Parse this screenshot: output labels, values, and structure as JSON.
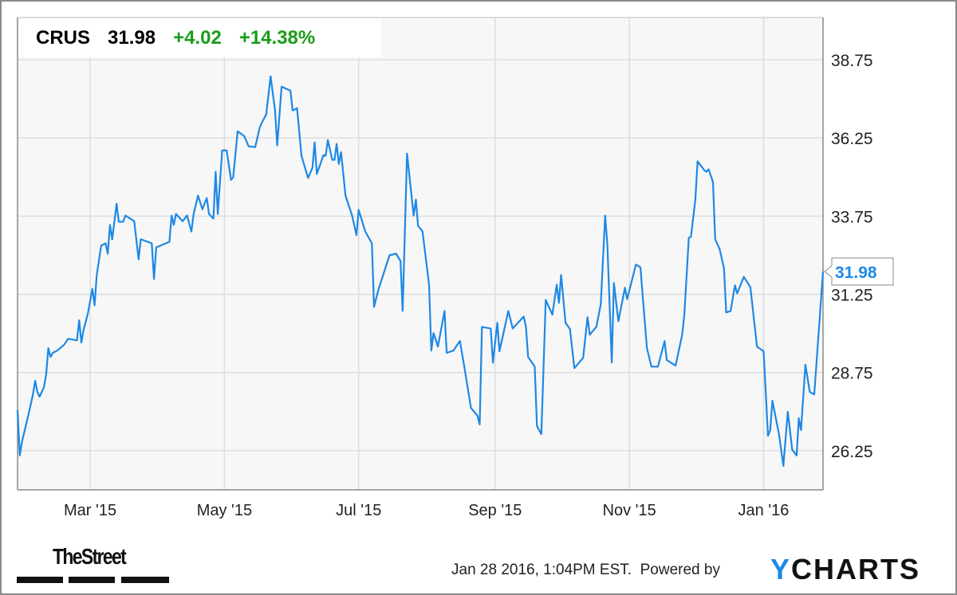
{
  "header": {
    "ticker": "CRUS",
    "price": "31.98",
    "change": "+4.02",
    "change_pct": "+14.38%"
  },
  "footer": {
    "timestamp": "Jan 28 2016, 1:04PM EST.",
    "powered_by": "Powered by",
    "brand_left": "TheStreet",
    "brand_right_first": "Y",
    "brand_right_rest": "CHARTS"
  },
  "colors": {
    "line": "#1e88e5",
    "positive": "#1a9c1a",
    "plot_bg": "#f7f7f7",
    "grid": "#dddddd"
  },
  "chart_data": {
    "type": "line",
    "title": "",
    "xlabel": "",
    "ylabel": "",
    "xlim": [
      "2015-01-27",
      "2016-01-28"
    ],
    "ylim": [
      25.0,
      40.1
    ],
    "y_axis_position": "right",
    "grid": true,
    "x_ticks": [
      {
        "date": "2015-03-01",
        "label": "Mar '15"
      },
      {
        "date": "2015-05-01",
        "label": "May '15"
      },
      {
        "date": "2015-07-01",
        "label": "Jul '15"
      },
      {
        "date": "2015-09-01",
        "label": "Sep '15"
      },
      {
        "date": "2015-11-01",
        "label": "Nov '15"
      },
      {
        "date": "2016-01-01",
        "label": "Jan '16"
      }
    ],
    "y_ticks": [
      "26.25",
      "28.75",
      "31.25",
      "33.75",
      "36.25",
      "38.75"
    ],
    "last_value_label": "31.98",
    "series": [
      {
        "points": [
          [
            "2015-01-27",
            27.55
          ],
          [
            "2015-01-28",
            26.1
          ],
          [
            "2015-01-29",
            26.53
          ],
          [
            "2015-02-01",
            27.42
          ],
          [
            "2015-02-03",
            28.05
          ],
          [
            "2015-02-04",
            28.49
          ],
          [
            "2015-02-05",
            28.13
          ],
          [
            "2015-02-06",
            27.98
          ],
          [
            "2015-02-08",
            28.28
          ],
          [
            "2015-02-09",
            28.69
          ],
          [
            "2015-02-10",
            29.53
          ],
          [
            "2015-02-11",
            29.25
          ],
          [
            "2015-02-12",
            29.38
          ],
          [
            "2015-02-14",
            29.45
          ],
          [
            "2015-02-17",
            29.63
          ],
          [
            "2015-02-19",
            29.83
          ],
          [
            "2015-02-23",
            29.78
          ],
          [
            "2015-02-24",
            30.42
          ],
          [
            "2015-02-25",
            29.71
          ],
          [
            "2015-02-26",
            30.11
          ],
          [
            "2015-02-28",
            30.65
          ],
          [
            "2015-03-02",
            31.43
          ],
          [
            "2015-03-03",
            30.9
          ],
          [
            "2015-03-04",
            31.87
          ],
          [
            "2015-03-06",
            32.81
          ],
          [
            "2015-03-08",
            32.88
          ],
          [
            "2015-03-09",
            32.55
          ],
          [
            "2015-03-10",
            33.47
          ],
          [
            "2015-03-11",
            33.01
          ],
          [
            "2015-03-13",
            34.15
          ],
          [
            "2015-03-14",
            33.57
          ],
          [
            "2015-03-16",
            33.57
          ],
          [
            "2015-03-17",
            33.77
          ],
          [
            "2015-03-21",
            33.59
          ],
          [
            "2015-03-23",
            32.37
          ],
          [
            "2015-03-24",
            33.01
          ],
          [
            "2015-03-29",
            32.88
          ],
          [
            "2015-03-30",
            31.74
          ],
          [
            "2015-03-31",
            32.75
          ],
          [
            "2015-04-06",
            32.93
          ],
          [
            "2015-04-07",
            33.77
          ],
          [
            "2015-04-08",
            33.47
          ],
          [
            "2015-04-09",
            33.82
          ],
          [
            "2015-04-12",
            33.59
          ],
          [
            "2015-04-14",
            33.77
          ],
          [
            "2015-04-16",
            33.26
          ],
          [
            "2015-04-17",
            33.82
          ],
          [
            "2015-04-19",
            34.41
          ],
          [
            "2015-04-21",
            33.97
          ],
          [
            "2015-04-23",
            34.33
          ],
          [
            "2015-04-24",
            33.82
          ],
          [
            "2015-04-26",
            33.67
          ],
          [
            "2015-04-27",
            35.17
          ],
          [
            "2015-04-28",
            33.82
          ],
          [
            "2015-04-30",
            35.85
          ],
          [
            "2015-05-02",
            35.85
          ],
          [
            "2015-05-04",
            34.91
          ],
          [
            "2015-05-05",
            34.99
          ],
          [
            "2015-05-07",
            36.46
          ],
          [
            "2015-05-10",
            36.31
          ],
          [
            "2015-05-12",
            35.98
          ],
          [
            "2015-05-15",
            35.96
          ],
          [
            "2015-05-17",
            36.57
          ],
          [
            "2015-05-18",
            36.74
          ],
          [
            "2015-05-20",
            37.0
          ],
          [
            "2015-05-22",
            38.22
          ],
          [
            "2015-05-24",
            37.13
          ],
          [
            "2015-05-25",
            36.01
          ],
          [
            "2015-05-27",
            37.89
          ],
          [
            "2015-05-31",
            37.76
          ],
          [
            "2015-06-01",
            37.13
          ],
          [
            "2015-06-03",
            37.2
          ],
          [
            "2015-06-05",
            35.68
          ],
          [
            "2015-06-08",
            34.97
          ],
          [
            "2015-06-10",
            35.3
          ],
          [
            "2015-06-11",
            36.11
          ],
          [
            "2015-06-12",
            35.1
          ],
          [
            "2015-06-15",
            35.7
          ],
          [
            "2015-06-16",
            35.68
          ],
          [
            "2015-06-17",
            36.18
          ],
          [
            "2015-06-19",
            35.55
          ],
          [
            "2015-06-20",
            35.55
          ],
          [
            "2015-06-21",
            36.06
          ],
          [
            "2015-06-22",
            35.42
          ],
          [
            "2015-06-23",
            35.8
          ],
          [
            "2015-06-25",
            34.41
          ],
          [
            "2015-06-28",
            33.77
          ],
          [
            "2015-06-30",
            33.14
          ],
          [
            "2015-07-01",
            33.95
          ],
          [
            "2015-07-04",
            33.26
          ],
          [
            "2015-07-07",
            32.88
          ],
          [
            "2015-07-08",
            30.85
          ],
          [
            "2015-07-10",
            31.41
          ],
          [
            "2015-07-15",
            32.5
          ],
          [
            "2015-07-18",
            32.55
          ],
          [
            "2015-07-20",
            32.32
          ],
          [
            "2015-07-21",
            30.72
          ],
          [
            "2015-07-23",
            35.75
          ],
          [
            "2015-07-26",
            33.77
          ],
          [
            "2015-07-27",
            34.28
          ],
          [
            "2015-07-28",
            33.44
          ],
          [
            "2015-07-30",
            33.26
          ],
          [
            "2015-08-02",
            31.56
          ],
          [
            "2015-08-03",
            29.45
          ],
          [
            "2015-08-04",
            30.01
          ],
          [
            "2015-08-06",
            29.58
          ],
          [
            "2015-08-09",
            30.72
          ],
          [
            "2015-08-10",
            29.38
          ],
          [
            "2015-08-13",
            29.45
          ],
          [
            "2015-08-16",
            29.76
          ],
          [
            "2015-08-18",
            28.94
          ],
          [
            "2015-08-21",
            27.62
          ],
          [
            "2015-08-24",
            27.37
          ],
          [
            "2015-08-25",
            27.09
          ],
          [
            "2015-08-26",
            30.21
          ],
          [
            "2015-08-30",
            30.16
          ],
          [
            "2015-08-31",
            29.07
          ],
          [
            "2015-09-02",
            30.34
          ],
          [
            "2015-09-03",
            29.43
          ],
          [
            "2015-09-07",
            30.72
          ],
          [
            "2015-09-09",
            30.16
          ],
          [
            "2015-09-14",
            30.54
          ],
          [
            "2015-09-15",
            30.21
          ],
          [
            "2015-09-16",
            29.25
          ],
          [
            "2015-09-19",
            28.94
          ],
          [
            "2015-09-20",
            27.04
          ],
          [
            "2015-09-22",
            26.78
          ],
          [
            "2015-09-24",
            31.07
          ],
          [
            "2015-09-27",
            30.6
          ],
          [
            "2015-09-29",
            31.56
          ],
          [
            "2015-09-30",
            30.98
          ],
          [
            "2015-10-01",
            31.87
          ],
          [
            "2015-10-03",
            30.34
          ],
          [
            "2015-10-05",
            30.14
          ],
          [
            "2015-10-07",
            28.89
          ],
          [
            "2015-10-11",
            29.22
          ],
          [
            "2015-10-13",
            30.52
          ],
          [
            "2015-10-14",
            29.96
          ],
          [
            "2015-10-17",
            30.21
          ],
          [
            "2015-10-19",
            30.93
          ],
          [
            "2015-10-21",
            33.77
          ],
          [
            "2015-10-22",
            32.83
          ],
          [
            "2015-10-24",
            29.07
          ],
          [
            "2015-10-25",
            31.61
          ],
          [
            "2015-10-27",
            30.39
          ],
          [
            "2015-10-30",
            31.46
          ],
          [
            "2015-10-31",
            31.1
          ],
          [
            "2015-11-04",
            32.2
          ],
          [
            "2015-11-06",
            32.12
          ],
          [
            "2015-11-09",
            29.53
          ],
          [
            "2015-11-11",
            28.94
          ],
          [
            "2015-11-14",
            28.94
          ],
          [
            "2015-11-17",
            29.76
          ],
          [
            "2015-11-18",
            29.15
          ],
          [
            "2015-11-22",
            28.97
          ],
          [
            "2015-11-25",
            29.96
          ],
          [
            "2015-11-26",
            30.6
          ],
          [
            "2015-11-28",
            33.06
          ],
          [
            "2015-11-29",
            33.09
          ],
          [
            "2015-12-01",
            34.28
          ],
          [
            "2015-12-02",
            35.5
          ],
          [
            "2015-12-05",
            35.22
          ],
          [
            "2015-12-06",
            35.17
          ],
          [
            "2015-12-07",
            35.25
          ],
          [
            "2015-12-09",
            34.84
          ],
          [
            "2015-12-10",
            33.01
          ],
          [
            "2015-12-12",
            32.7
          ],
          [
            "2015-12-14",
            32.09
          ],
          [
            "2015-12-15",
            30.67
          ],
          [
            "2015-12-17",
            30.72
          ],
          [
            "2015-12-19",
            31.54
          ],
          [
            "2015-12-20",
            31.28
          ],
          [
            "2015-12-23",
            31.81
          ],
          [
            "2015-12-26",
            31.48
          ],
          [
            "2015-12-29",
            29.58
          ],
          [
            "2016-01-01",
            29.43
          ],
          [
            "2016-01-03",
            26.73
          ],
          [
            "2016-01-04",
            26.91
          ],
          [
            "2016-01-05",
            27.85
          ],
          [
            "2016-01-08",
            26.78
          ],
          [
            "2016-01-10",
            25.77
          ],
          [
            "2016-01-12",
            27.5
          ],
          [
            "2016-01-14",
            26.28
          ],
          [
            "2016-01-16",
            26.1
          ],
          [
            "2016-01-17",
            27.29
          ],
          [
            "2016-01-18",
            26.91
          ],
          [
            "2016-01-20",
            29.0
          ],
          [
            "2016-01-22",
            28.13
          ],
          [
            "2016-01-24",
            28.05
          ],
          [
            "2016-01-28",
            31.98
          ]
        ]
      }
    ]
  }
}
